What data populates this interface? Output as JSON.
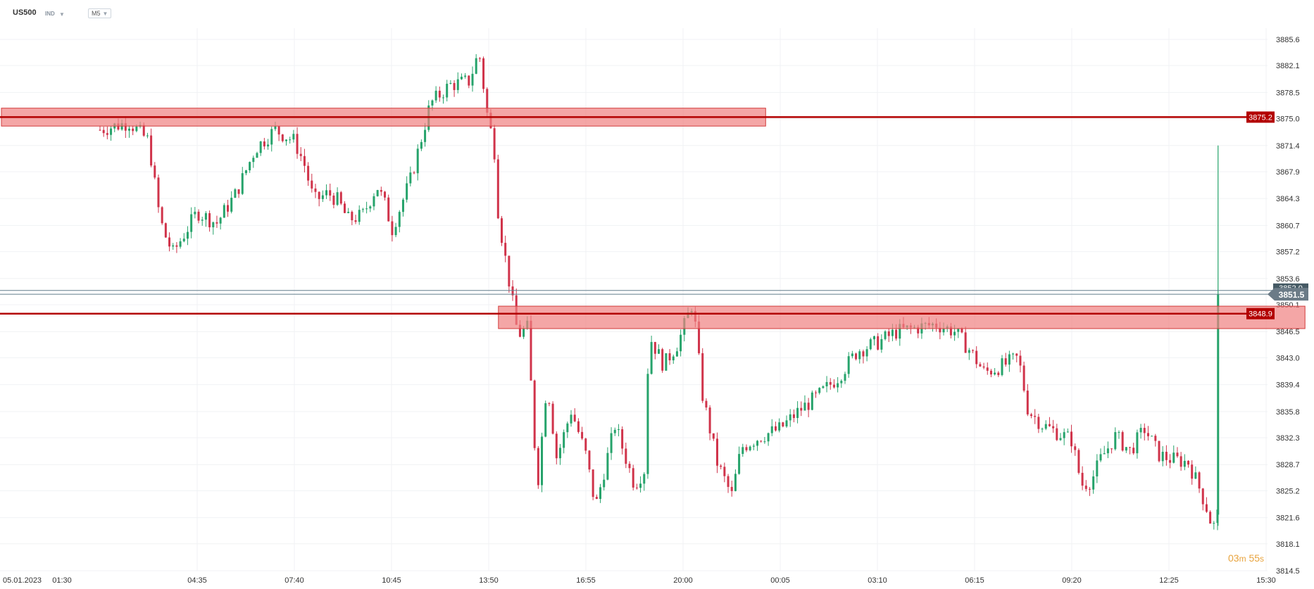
{
  "header": {
    "symbol": "US500",
    "instrument_tag": "IND",
    "timeframe": "M5"
  },
  "timer": {
    "minutes": "03",
    "min_unit": "m",
    "seconds": "55",
    "sec_unit": "s"
  },
  "colors": {
    "up": "#26a36b",
    "down": "#d0334a",
    "level_line": "#b30000",
    "zone_fill": "#f08080",
    "current_price_line": "#607d8b"
  },
  "chart_data": {
    "type": "candlestick",
    "symbol": "US500",
    "timeframe": "M5",
    "y_ticks": [
      3885.6,
      3882.1,
      3878.5,
      3875.0,
      3871.4,
      3867.9,
      3864.3,
      3860.7,
      3857.2,
      3853.6,
      3850.1,
      3846.5,
      3843.0,
      3839.4,
      3835.8,
      3832.3,
      3828.7,
      3825.2,
      3821.6,
      3818.1,
      3814.5
    ],
    "ylim": [
      3814.5,
      3885.6
    ],
    "x_ticks": [
      {
        "label": "05.01.2023",
        "pos": 0.0
      },
      {
        "label": "01:30",
        "pos": 0.0833
      },
      {
        "label": "04:35",
        "pos": 1.0
      },
      {
        "label": "07:40",
        "pos": 2.0
      },
      {
        "label": "10:45",
        "pos": 3.0
      },
      {
        "label": "13:50",
        "pos": 4.0
      },
      {
        "label": "16:55",
        "pos": 5.0
      },
      {
        "label": "20:00",
        "pos": 6.0
      },
      {
        "label": "00:05",
        "pos": 7.0
      },
      {
        "label": "03:10",
        "pos": 8.0
      },
      {
        "label": "06:15",
        "pos": 9.0
      },
      {
        "label": "09:20",
        "pos": 10.0
      },
      {
        "label": "12:25",
        "pos": 11.0
      },
      {
        "label": "15:30",
        "pos": 12.0
      }
    ],
    "grid": true,
    "price_path": [
      [
        0.0,
        3873.5
      ],
      [
        0.3,
        3874.5
      ],
      [
        0.5,
        3872.0
      ],
      [
        0.6,
        3863.0
      ],
      [
        0.65,
        3860.0
      ],
      [
        0.75,
        3857.0
      ],
      [
        1.0,
        3862.5
      ],
      [
        1.2,
        3861.0
      ],
      [
        1.4,
        3865.0
      ],
      [
        1.6,
        3871.0
      ],
      [
        1.8,
        3873.5
      ],
      [
        2.0,
        3872.0
      ],
      [
        2.1,
        3869.0
      ],
      [
        2.2,
        3864.0
      ],
      [
        2.35,
        3865.0
      ],
      [
        2.45,
        3864.0
      ],
      [
        2.55,
        3861.5
      ],
      [
        2.7,
        3862.0
      ],
      [
        2.85,
        3866.0
      ],
      [
        2.95,
        3863.0
      ],
      [
        3.0,
        3860.0
      ],
      [
        3.2,
        3867.0
      ],
      [
        3.4,
        3877.0
      ],
      [
        3.6,
        3879.5
      ],
      [
        3.8,
        3880.0
      ],
      [
        3.9,
        3884.0
      ],
      [
        4.0,
        3874.0
      ],
      [
        4.05,
        3872.5
      ],
      [
        4.1,
        3862.0
      ],
      [
        4.2,
        3854.0
      ],
      [
        4.3,
        3846.0
      ],
      [
        4.4,
        3847.0
      ],
      [
        4.5,
        3825.5
      ],
      [
        4.6,
        3840.0
      ],
      [
        4.7,
        3829.5
      ],
      [
        4.85,
        3836.0
      ],
      [
        5.0,
        3830.0
      ],
      [
        5.1,
        3823.0
      ],
      [
        5.3,
        3834.0
      ],
      [
        5.5,
        3826.0
      ],
      [
        5.6,
        3828.0
      ],
      [
        5.65,
        3846.0
      ],
      [
        5.8,
        3842.0
      ],
      [
        5.95,
        3845.0
      ],
      [
        6.1,
        3850.5
      ],
      [
        6.2,
        3838.0
      ],
      [
        6.35,
        3829.0
      ],
      [
        6.5,
        3824.5
      ],
      [
        6.6,
        3831.0
      ],
      [
        6.8,
        3832.5
      ],
      [
        7.0,
        3833.5
      ],
      [
        7.2,
        3836.0
      ],
      [
        7.4,
        3838.0
      ],
      [
        7.6,
        3840.5
      ],
      [
        7.8,
        3844.0
      ],
      [
        8.0,
        3845.0
      ],
      [
        8.2,
        3846.5
      ],
      [
        8.4,
        3847.0
      ],
      [
        8.6,
        3847.5
      ],
      [
        8.8,
        3846.5
      ],
      [
        8.95,
        3844.0
      ],
      [
        9.1,
        3841.0
      ],
      [
        9.3,
        3842.0
      ],
      [
        9.45,
        3843.0
      ],
      [
        9.55,
        3836.0
      ],
      [
        9.7,
        3834.0
      ],
      [
        9.85,
        3833.0
      ],
      [
        10.0,
        3832.0
      ],
      [
        10.1,
        3826.0
      ],
      [
        10.2,
        3826.5
      ],
      [
        10.3,
        3829.5
      ],
      [
        10.45,
        3832.5
      ],
      [
        10.6,
        3830.5
      ],
      [
        10.75,
        3833.5
      ],
      [
        10.9,
        3830.0
      ],
      [
        11.0,
        3829.5
      ],
      [
        11.2,
        3829.0
      ],
      [
        11.3,
        3826.0
      ],
      [
        11.4,
        3822.5
      ],
      [
        11.45,
        3820.0
      ],
      [
        11.5,
        3822.0
      ],
      [
        11.52,
        3851.5
      ]
    ],
    "spike_high": 3871.4,
    "levels": [
      {
        "price": 3875.2,
        "label": "3875.2"
      },
      {
        "price": 3848.9,
        "label": "3848.9"
      }
    ],
    "zones": [
      {
        "from_pos": 0.0,
        "to_pos": 6.85,
        "low": 3874.0,
        "high": 3876.4
      },
      {
        "from_pos": 4.1,
        "to_pos": 12.4,
        "low": 3846.9,
        "high": 3849.9
      }
    ],
    "current_price": {
      "value": 3851.5,
      "label": "3851.5",
      "bid_label": "3852.0",
      "bid_value": 3852.0
    }
  }
}
